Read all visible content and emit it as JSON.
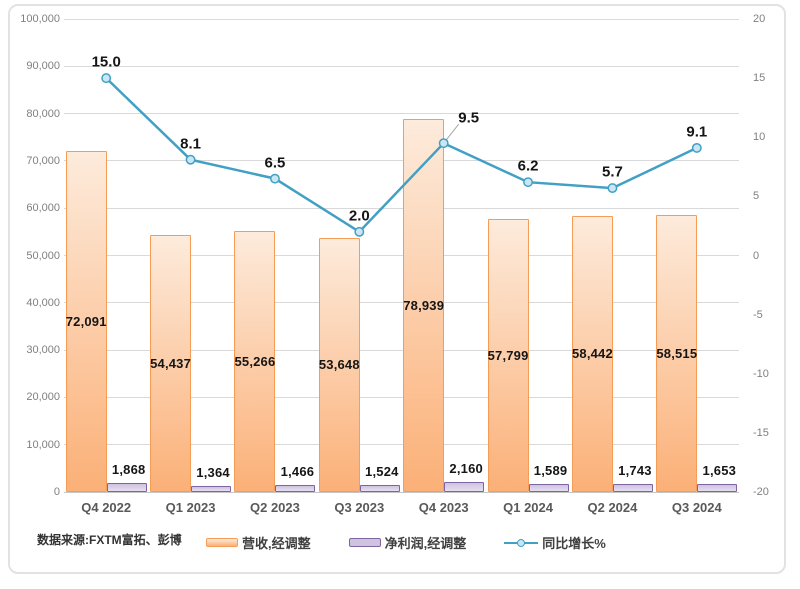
{
  "chart": {
    "source_note": "数据来源:FXTM富拓、彭博",
    "legend": [
      {
        "label": "营收,经调整",
        "swatch": "revenue-bar"
      },
      {
        "label": "净利润,经调整",
        "swatch": "profit-bar"
      },
      {
        "label": "同比增长%",
        "swatch": "growth-line"
      }
    ]
  },
  "chart_data": {
    "type": "combo-bar-line",
    "categories": [
      "Q4 2022",
      "Q1 2023",
      "Q2 2023",
      "Q3 2023",
      "Q4 2023",
      "Q1 2024",
      "Q2 2024",
      "Q3 2024"
    ],
    "series": [
      {
        "name": "营收,经调整",
        "type": "bar",
        "axis": "left",
        "values": [
          72091,
          54437,
          55266,
          53648,
          78939,
          57799,
          58442,
          58515
        ],
        "labels": [
          "72,091",
          "54,437",
          "55,266",
          "53,648",
          "78,939",
          "57,799",
          "58,442",
          "58,515"
        ],
        "label_position": "inside-center"
      },
      {
        "name": "净利润,经调整",
        "type": "bar",
        "axis": "left",
        "values": [
          1868,
          1364,
          1466,
          1524,
          2160,
          1589,
          1743,
          1653
        ],
        "labels": [
          "1,868",
          "1,364",
          "1,466",
          "1,524",
          "2,160",
          "1,589",
          "1,743",
          "1,653"
        ],
        "label_position": "above"
      },
      {
        "name": "同比增长%",
        "type": "line",
        "axis": "right",
        "values": [
          15.0,
          8.1,
          6.5,
          2.0,
          9.5,
          6.2,
          5.7,
          9.1
        ],
        "labels": [
          "15.0",
          "8.1",
          "6.5",
          "2.0",
          "9.5",
          "6.2",
          "5.7",
          "9.1"
        ],
        "label_offsets": [
          [
            0,
            -16
          ],
          [
            0,
            -16
          ],
          [
            0,
            -16
          ],
          [
            0,
            -16
          ],
          [
            25,
            -25
          ],
          [
            0,
            -16
          ],
          [
            0,
            -16
          ],
          [
            0,
            -16
          ]
        ],
        "callout_index": 4
      }
    ],
    "left_axis": {
      "min": 0,
      "max": 100000,
      "step": 10000,
      "tick_labels": [
        "0",
        "10,000",
        "20,000",
        "30,000",
        "40,000",
        "50,000",
        "60,000",
        "70,000",
        "80,000",
        "90,000",
        "100,000"
      ]
    },
    "right_axis": {
      "min": -20,
      "max": 20,
      "step": 5,
      "tick_labels": [
        "-20",
        "-15",
        "-10",
        "-5",
        "0",
        "5",
        "10",
        "15",
        "20"
      ]
    },
    "grid": true,
    "legend_position": "bottom",
    "colors": {
      "revenue_border": "#F59D56",
      "revenue_fill_top": "#FDEBDC",
      "revenue_fill_bottom": "#FBB077",
      "profit_border": "#8064A2",
      "profit_fill_top": "#CFC3E0",
      "profit_fill_bottom": "#E6DFF2",
      "growth_line": "#41A0C3",
      "growth_marker_fill": "#C9E6F2",
      "gridline": "#D9D9D9",
      "axis_text": "#808080",
      "category_text": "#595959",
      "data_label_text": "#151515",
      "leader_line": "#A6A6A6",
      "frame_border": "#E2E2E2"
    }
  }
}
